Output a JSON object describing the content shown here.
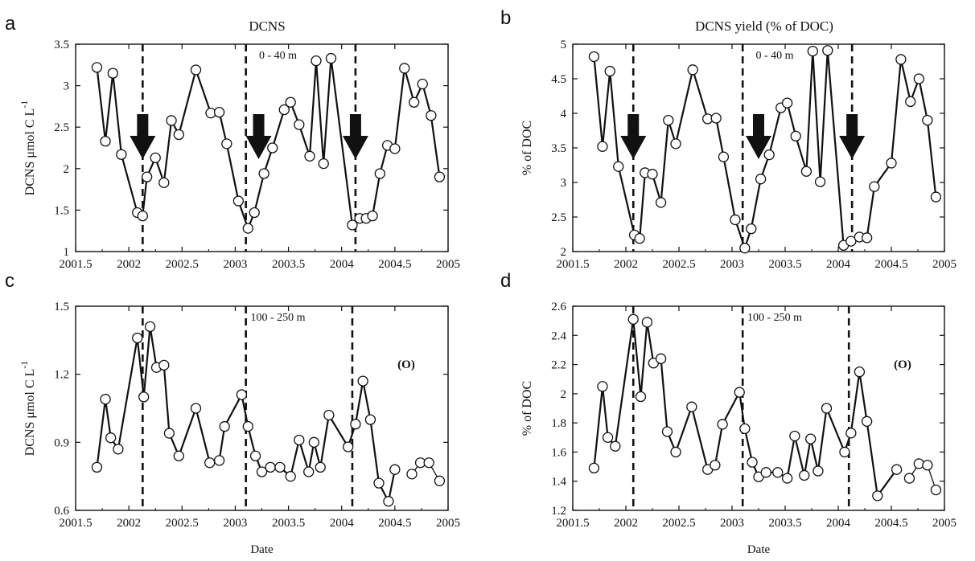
{
  "colors": {
    "line": "#111111",
    "background": "#ffffff"
  },
  "chart_data": [
    {
      "type": "line",
      "panel_letter": "a",
      "title": "DCNS",
      "depth_label": "0 - 40 m",
      "xlabel": "",
      "ylabel": "DCNS μmol C L",
      "ylabel_superscript": "-1",
      "xlim": [
        2001.5,
        2005
      ],
      "ylim": [
        1,
        3.5
      ],
      "xticks": [
        2001.5,
        2002,
        2002.5,
        2003,
        2003.5,
        2004,
        2004.5,
        2005
      ],
      "xtick_labels": [
        "2001.5",
        "2002",
        "2002.5",
        "2003",
        "2003.5",
        "2004",
        "2004.5",
        "2005"
      ],
      "yticks": [
        1,
        1.5,
        2,
        2.5,
        3,
        3.5
      ],
      "ytick_labels": [
        "1",
        "1.5",
        "2",
        "2.5",
        "3",
        "3.5"
      ],
      "vlines": [
        2002.13,
        2003.1,
        2004.13
      ],
      "arrows": [
        2002.13,
        2003.22,
        2004.13
      ],
      "series": [
        {
          "x": [
            2001.7,
            2001.78,
            2001.85,
            2001.93,
            2002.08,
            2002.13,
            2002.17,
            2002.25,
            2002.33,
            2002.4,
            2002.47,
            2002.63,
            2002.77,
            2002.85,
            2002.92,
            2003.03,
            2003.12,
            2003.18,
            2003.27,
            2003.35,
            2003.46,
            2003.52,
            2003.6,
            2003.7,
            2003.76,
            2003.83,
            2003.9,
            2004.1,
            2004.17,
            2004.23,
            2004.29,
            2004.36,
            2004.43,
            2004.5,
            2004.59,
            2004.68,
            2004.76,
            2004.84,
            2004.92
          ],
          "y": [
            3.22,
            2.33,
            3.15,
            2.17,
            1.47,
            1.43,
            1.9,
            2.13,
            1.83,
            2.58,
            2.41,
            3.19,
            2.67,
            2.68,
            2.3,
            1.61,
            1.28,
            1.47,
            1.94,
            2.25,
            2.71,
            2.8,
            2.53,
            2.15,
            3.3,
            2.06,
            3.33,
            1.32,
            1.4,
            1.4,
            1.43,
            1.94,
            2.28,
            2.24,
            3.21,
            2.8,
            3.02,
            2.64,
            1.9
          ]
        }
      ]
    },
    {
      "type": "line",
      "panel_letter": "b",
      "title": "DCNS yield (% of DOC)",
      "depth_label": "0 - 40 m",
      "xlabel": "",
      "ylabel": "% of DOC",
      "xlim": [
        2001.5,
        2005
      ],
      "ylim": [
        2,
        5
      ],
      "xticks": [
        2001.5,
        2002,
        2002.5,
        2003,
        2003.5,
        2004,
        2004.5,
        2005
      ],
      "xtick_labels": [
        "2001.5",
        "2002",
        "2002.5",
        "2003",
        "2003.5",
        "2004",
        "2004.5",
        "2005"
      ],
      "yticks": [
        2,
        2.5,
        3,
        3.5,
        4,
        4.5,
        5
      ],
      "ytick_labels": [
        "2",
        "2.5",
        "3",
        "3.5",
        "4",
        "4.5",
        "5"
      ],
      "vlines": [
        2002.07,
        2003.1,
        2004.13
      ],
      "arrows": [
        2002.07,
        2003.25,
        2004.13
      ],
      "series": [
        {
          "x": [
            2001.7,
            2001.78,
            2001.85,
            2001.93,
            2002.08,
            2002.13,
            2002.18,
            2002.25,
            2002.33,
            2002.4,
            2002.47,
            2002.63,
            2002.77,
            2002.85,
            2002.92,
            2003.03,
            2003.12,
            2003.18,
            2003.27,
            2003.35,
            2003.46,
            2003.52,
            2003.6,
            2003.7,
            2003.76,
            2003.83,
            2003.9,
            2004.05,
            2004.12,
            2004.2,
            2004.27,
            2004.34,
            2004.5,
            2004.59,
            2004.68,
            2004.76,
            2004.84,
            2004.92
          ],
          "y": [
            4.82,
            3.52,
            4.61,
            3.23,
            2.24,
            2.19,
            3.14,
            3.12,
            2.71,
            3.9,
            3.56,
            4.63,
            3.92,
            3.93,
            3.37,
            2.46,
            2.05,
            2.33,
            3.05,
            3.4,
            4.08,
            4.15,
            3.67,
            3.16,
            4.9,
            3.01,
            4.91,
            2.09,
            2.15,
            2.21,
            2.2,
            2.94,
            3.28,
            4.78,
            4.17,
            4.5,
            3.9,
            2.79
          ]
        }
      ]
    },
    {
      "type": "line",
      "panel_letter": "c",
      "title": "",
      "depth_label": "100 - 250 m",
      "marker_label": "(O)",
      "xlabel": "Date",
      "ylabel": "DCNS μmol C L",
      "ylabel_superscript": "-1",
      "xlim": [
        2001.5,
        2005
      ],
      "ylim": [
        0.6,
        1.5
      ],
      "xticks": [
        2001.5,
        2002,
        2002.5,
        2003,
        2003.5,
        2004,
        2004.5,
        2005
      ],
      "xtick_labels": [
        "2001.5",
        "2002",
        "2002.5",
        "2003",
        "2003.5",
        "2004",
        "2004.5",
        "2005"
      ],
      "yticks": [
        0.6,
        0.9,
        1.2,
        1.5
      ],
      "ytick_labels": [
        "0.6",
        "0.9",
        "1.2",
        "1.5"
      ],
      "vlines": [
        2002.13,
        2003.1,
        2004.1
      ],
      "arrows": [],
      "series": [
        {
          "x": [
            2001.7,
            2001.78,
            2001.83,
            2001.9,
            2002.08,
            2002.14,
            2002.2,
            2002.26,
            2002.33,
            2002.38,
            2002.47,
            2002.63,
            2002.76,
            2002.85,
            2002.9,
            2003.06,
            2003.12,
            2003.19,
            2003.25,
            2003.33,
            2003.42,
            2003.52,
            2003.6,
            2003.69,
            2003.74,
            2003.8,
            2003.88,
            2004.06,
            2004.13,
            2004.2,
            2004.27,
            2004.35,
            2004.44,
            2004.5
          ],
          "y": [
            0.79,
            1.09,
            0.92,
            0.87,
            1.36,
            1.1,
            1.41,
            1.23,
            1.24,
            0.94,
            0.84,
            1.05,
            0.81,
            0.82,
            0.97,
            1.11,
            0.97,
            0.84,
            0.77,
            0.79,
            0.79,
            0.75,
            0.91,
            0.77,
            0.9,
            0.79,
            1.02,
            0.88,
            0.98,
            1.17,
            1.0,
            0.72,
            0.64,
            0.78
          ]
        },
        {
          "x": [
            2004.66,
            2004.74,
            2004.82,
            2004.92
          ],
          "y": [
            0.76,
            0.81,
            0.81,
            0.73
          ]
        }
      ]
    },
    {
      "type": "line",
      "panel_letter": "d",
      "title": "",
      "depth_label": "100 - 250 m",
      "marker_label": "(O)",
      "xlabel": "Date",
      "ylabel": "% of DOC",
      "xlim": [
        2001.5,
        2005
      ],
      "ylim": [
        1.2,
        2.6
      ],
      "xticks": [
        2001.5,
        2002,
        2002.5,
        2003,
        2003.5,
        2004,
        2004.5,
        2005
      ],
      "xtick_labels": [
        "2001.5",
        "2002",
        "2002.5",
        "2003",
        "2003.5",
        "2004",
        "2004.5",
        "2005"
      ],
      "yticks": [
        1.2,
        1.4,
        1.6,
        1.8,
        2,
        2.2,
        2.4,
        2.6
      ],
      "ytick_labels": [
        "1.2",
        "1.4",
        "1.6",
        "1.8",
        "2",
        "2.2",
        "2.4",
        "2.6"
      ],
      "vlines": [
        2002.07,
        2003.1,
        2004.1
      ],
      "arrows": [],
      "series": [
        {
          "x": [
            2001.7,
            2001.78,
            2001.83,
            2001.9,
            2002.07,
            2002.14,
            2002.2,
            2002.26,
            2002.33,
            2002.39,
            2002.47,
            2002.62,
            2002.77,
            2002.84,
            2002.91,
            2003.07,
            2003.12,
            2003.19,
            2003.25,
            2003.32,
            2003.43,
            2003.52,
            2003.59,
            2003.68,
            2003.74,
            2003.81,
            2003.89,
            2004.06,
            2004.12,
            2004.2,
            2004.27,
            2004.37,
            2004.55
          ],
          "y": [
            1.49,
            2.05,
            1.7,
            1.64,
            2.51,
            1.98,
            2.49,
            2.21,
            2.24,
            1.74,
            1.6,
            1.91,
            1.48,
            1.51,
            1.79,
            2.01,
            1.76,
            1.53,
            1.43,
            1.46,
            1.46,
            1.42,
            1.71,
            1.44,
            1.69,
            1.47,
            1.9,
            1.6,
            1.73,
            2.15,
            1.81,
            1.3,
            1.48
          ]
        },
        {
          "x": [
            2004.67,
            2004.76,
            2004.84,
            2004.92
          ],
          "y": [
            1.42,
            1.52,
            1.51,
            1.34
          ]
        }
      ]
    }
  ]
}
